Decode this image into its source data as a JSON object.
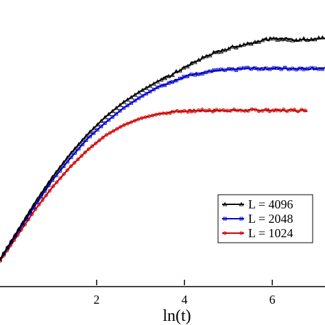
{
  "chart_data": {
    "type": "line",
    "xlabel": "ln(t)",
    "ylabel": "",
    "title": "",
    "xlim": [
      -0.2,
      7.2
    ],
    "ylim": [
      0,
      1
    ],
    "x_ticks": [
      2,
      4,
      6
    ],
    "x_tick_labels": [
      "2",
      "4",
      "6"
    ],
    "grid": false,
    "legend_position": "right",
    "series": [
      {
        "name": "L = 4096",
        "color": "#000000",
        "marker": "triangle",
        "x": [
          -0.2,
          0.2,
          0.6,
          1.0,
          1.4,
          1.8,
          2.2,
          2.6,
          3.0,
          3.4,
          3.8,
          4.2,
          4.6,
          5.0,
          5.4,
          5.8,
          6.2,
          6.6,
          7.0,
          7.2
        ],
        "y": [
          0.09,
          0.19,
          0.29,
          0.38,
          0.46,
          0.53,
          0.59,
          0.64,
          0.68,
          0.715,
          0.745,
          0.78,
          0.81,
          0.83,
          0.845,
          0.86,
          0.865,
          0.86,
          0.865,
          0.865
        ]
      },
      {
        "name": "L = 2048",
        "color": "#0000cc",
        "marker": "square",
        "x": [
          -0.2,
          0.2,
          0.6,
          1.0,
          1.4,
          1.8,
          2.2,
          2.6,
          3.0,
          3.4,
          3.8,
          4.2,
          4.6,
          5.0,
          5.4,
          5.8,
          6.2,
          6.6,
          7.0,
          7.2
        ],
        "y": [
          0.09,
          0.185,
          0.28,
          0.37,
          0.445,
          0.515,
          0.57,
          0.62,
          0.66,
          0.695,
          0.72,
          0.74,
          0.75,
          0.755,
          0.76,
          0.76,
          0.76,
          0.76,
          0.76,
          0.76
        ]
      },
      {
        "name": "L = 1024",
        "color": "#cc0000",
        "marker": "circle",
        "x": [
          -0.2,
          0.2,
          0.6,
          1.0,
          1.4,
          1.8,
          2.2,
          2.6,
          3.0,
          3.4,
          3.8,
          4.2,
          4.6,
          5.0,
          5.4,
          5.8,
          6.2,
          6.6,
          6.8
        ],
        "y": [
          0.085,
          0.175,
          0.265,
          0.345,
          0.415,
          0.475,
          0.525,
          0.56,
          0.585,
          0.6,
          0.61,
          0.612,
          0.612,
          0.613,
          0.613,
          0.614,
          0.613,
          0.613,
          0.613
        ]
      }
    ]
  }
}
